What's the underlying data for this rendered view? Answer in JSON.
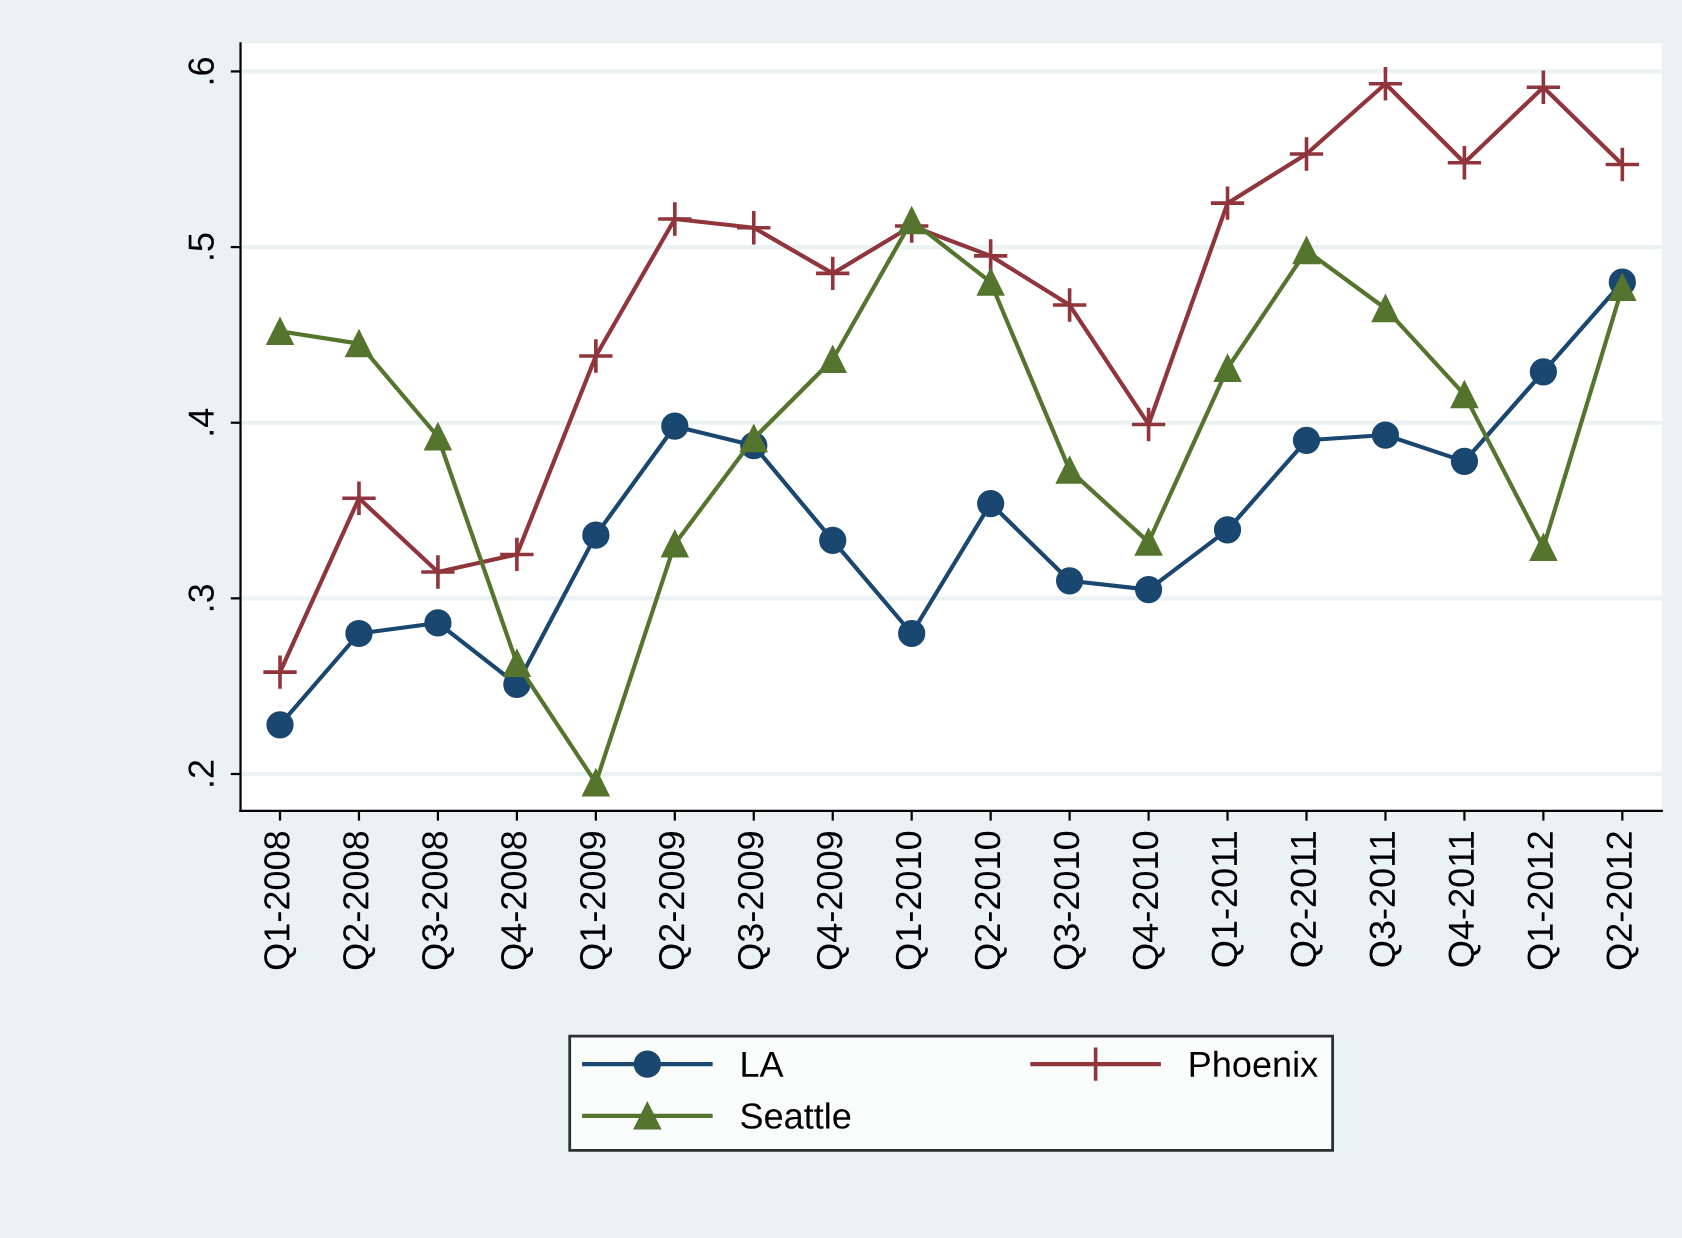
{
  "chart_data": {
    "type": "line",
    "categories": [
      "Q1-2008",
      "Q2-2008",
      "Q3-2008",
      "Q4-2008",
      "Q1-2009",
      "Q2-2009",
      "Q3-2009",
      "Q4-2009",
      "Q1-2010",
      "Q2-2010",
      "Q3-2010",
      "Q4-2010",
      "Q1-2011",
      "Q2-2011",
      "Q3-2011",
      "Q4-2011",
      "Q1-2012",
      "Q2-2012"
    ],
    "series": [
      {
        "name": "LA",
        "color": "#1a476f",
        "marker": "circle",
        "values": [
          0.228,
          0.28,
          0.286,
          0.251,
          0.336,
          0.398,
          0.387,
          0.333,
          0.28,
          0.354,
          0.31,
          0.305,
          0.339,
          0.39,
          0.393,
          0.378,
          0.429,
          0.48
        ]
      },
      {
        "name": "Phoenix",
        "color": "#90353b",
        "marker": "cross",
        "values": [
          0.258,
          0.357,
          0.315,
          0.325,
          0.438,
          0.516,
          0.511,
          0.485,
          0.512,
          0.495,
          0.467,
          0.399,
          0.525,
          0.553,
          0.593,
          0.548,
          0.591,
          0.547
        ]
      },
      {
        "name": "Seattle",
        "color": "#55752f",
        "marker": "triangle",
        "values": [
          0.452,
          0.445,
          0.392,
          0.263,
          0.195,
          0.331,
          0.391,
          0.436,
          0.515,
          0.48,
          0.373,
          0.332,
          0.431,
          0.498,
          0.465,
          0.416,
          0.329,
          0.477
        ]
      }
    ],
    "ylim": [
      0.179,
      0.616
    ],
    "yticks": [
      {
        "value": 0.2,
        "label": ".2"
      },
      {
        "value": 0.3,
        "label": ".3"
      },
      {
        "value": 0.4,
        "label": ".4"
      },
      {
        "value": 0.5,
        "label": ".5"
      },
      {
        "value": 0.6,
        "label": ".6"
      }
    ],
    "grid": "y",
    "legend": "bottom",
    "line_style": "solid"
  }
}
